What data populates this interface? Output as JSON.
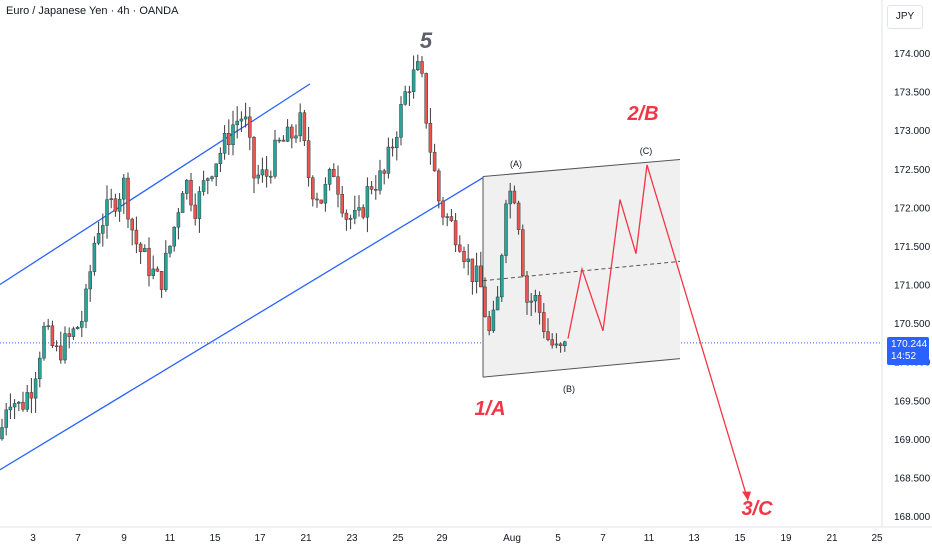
{
  "header": {
    "title": "Euro / Japanese Yen · 4h · OANDA"
  },
  "currency": "JPY",
  "current_price": {
    "value": 170.244,
    "label": "170.244",
    "countdown": "14:52"
  },
  "colors": {
    "up": "#26a69a",
    "down": "#ef5350",
    "candle": "#3a3a3a",
    "trendline": "#2962ff",
    "projection": "#f23645",
    "wave_label_gray": "#5d606b",
    "wave_label_red": "#f23645",
    "price_tag": "#2962ff",
    "box_fill": "#f0f0f0"
  },
  "chart_data": {
    "type": "candlestick",
    "instrument": "EURJPY",
    "timeframe": "4h",
    "ylim": [
      168.0,
      174.3
    ],
    "y_ticks": [
      "174.000",
      "173.500",
      "173.000",
      "172.500",
      "172.000",
      "171.500",
      "171.000",
      "170.500",
      "170.000",
      "169.500",
      "169.000",
      "168.500",
      "168.000"
    ],
    "x_ticks": [
      "3",
      "7",
      "9",
      "11",
      "15",
      "17",
      "21",
      "23",
      "25",
      "29",
      "Aug",
      "5",
      "7",
      "11",
      "13",
      "15",
      "19",
      "21",
      "25"
    ],
    "price_path": [
      [
        0,
        169.0
      ],
      [
        8,
        169.6
      ],
      [
        20,
        169.4
      ],
      [
        32,
        169.7
      ],
      [
        44,
        170.4
      ],
      [
        56,
        170.1
      ],
      [
        70,
        170.3
      ],
      [
        84,
        170.6
      ],
      [
        96,
        171.7
      ],
      [
        110,
        172.0
      ],
      [
        124,
        172.3
      ],
      [
        134,
        171.6
      ],
      [
        146,
        171.3
      ],
      [
        160,
        171.0
      ],
      [
        172,
        171.6
      ],
      [
        184,
        172.4
      ],
      [
        196,
        172.0
      ],
      [
        210,
        172.5
      ],
      [
        224,
        172.8
      ],
      [
        234,
        173.1
      ],
      [
        244,
        173.2
      ],
      [
        254,
        172.4
      ],
      [
        266,
        172.4
      ],
      [
        278,
        172.8
      ],
      [
        290,
        172.9
      ],
      [
        300,
        173.1
      ],
      [
        310,
        172.3
      ],
      [
        322,
        172.1
      ],
      [
        334,
        172.5
      ],
      [
        346,
        171.9
      ],
      [
        358,
        171.8
      ],
      [
        370,
        172.3
      ],
      [
        384,
        172.4
      ],
      [
        396,
        173.0
      ],
      [
        408,
        173.6
      ],
      [
        420,
        173.8
      ],
      [
        430,
        172.8
      ],
      [
        440,
        172.0
      ],
      [
        450,
        171.8
      ],
      [
        460,
        171.6
      ],
      [
        470,
        171.2
      ],
      [
        480,
        171.0
      ],
      [
        490,
        170.3
      ],
      [
        498,
        170.8
      ],
      [
        506,
        172.2
      ],
      [
        516,
        172.2
      ],
      [
        526,
        170.8
      ],
      [
        536,
        170.8
      ],
      [
        548,
        170.3
      ],
      [
        558,
        170.1
      ],
      [
        568,
        170.2
      ]
    ],
    "wave_labels": [
      {
        "text": "5",
        "price": 174.3,
        "color": "gray"
      },
      {
        "text": "1/A",
        "price": 169.4,
        "color": "red"
      },
      {
        "text": "2/B",
        "price": 173.2,
        "color": "red"
      },
      {
        "text": "3/C",
        "price": 168.0,
        "color": "red"
      },
      {
        "text": "(A)",
        "price": 172.45,
        "color": "dark"
      },
      {
        "text": "(B)",
        "price": 169.7,
        "color": "dark"
      },
      {
        "text": "(C)",
        "price": 172.65,
        "color": "dark"
      }
    ],
    "projection_path": [
      [
        568,
        170.3
      ],
      [
        582,
        171.2
      ],
      [
        603,
        170.4
      ],
      [
        620,
        172.1
      ],
      [
        636,
        171.4
      ],
      [
        647,
        172.55
      ],
      [
        748,
        168.2
      ]
    ],
    "channel_lines": [
      {
        "from": [
          0,
          171.0
        ],
        "to": [
          310,
          173.6
        ]
      },
      {
        "from": [
          0,
          168.6
        ],
        "to": [
          485,
          172.4
        ]
      }
    ],
    "corrective_channel": {
      "upper": {
        "from": [
          483,
          172.4
        ],
        "to": [
          680,
          172.62
        ]
      },
      "lower": {
        "from": [
          483,
          169.8
        ],
        "to": [
          680,
          170.04
        ]
      },
      "mid": {
        "from": [
          483,
          171.05
        ],
        "to": [
          680,
          171.3
        ]
      }
    }
  }
}
